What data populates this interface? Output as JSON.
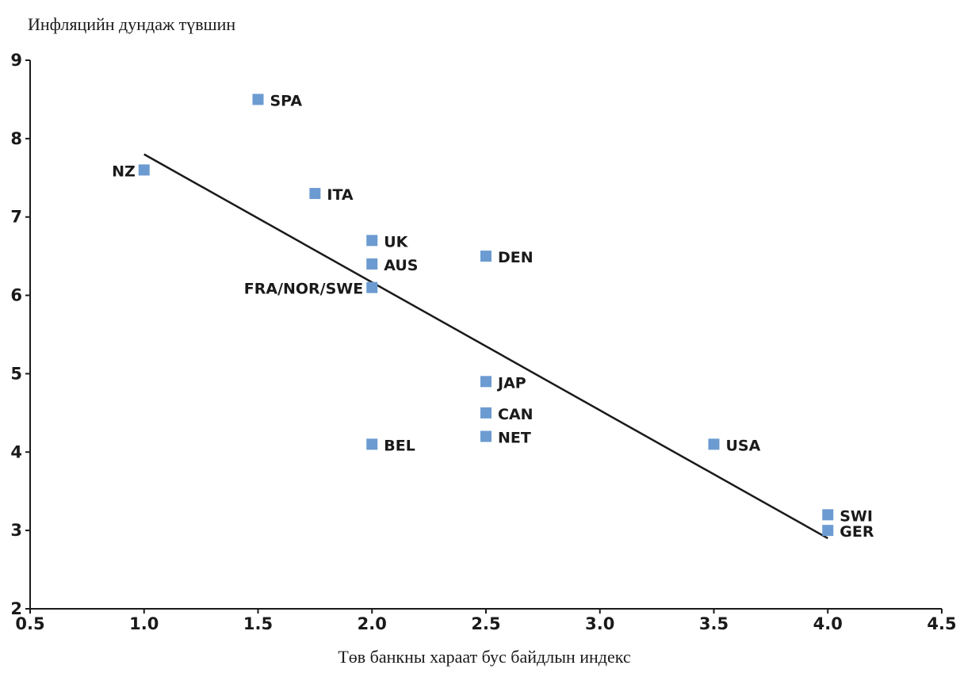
{
  "chart_data": {
    "type": "scatter",
    "title": "",
    "ylabel": "Инфляцийн дундаж түвшин",
    "xlabel": "Төв банкны хараат бус байдлын индекс",
    "xlim": [
      0.5,
      4.5
    ],
    "ylim": [
      2,
      9
    ],
    "x_ticks": [
      0.5,
      1.0,
      1.5,
      2.0,
      2.5,
      3.0,
      3.5,
      4.0,
      4.5
    ],
    "x_tick_labels": [
      "0.5",
      "1.0",
      "1.5",
      "2.0",
      "2.5",
      "3.0",
      "3.5",
      "4.0",
      "4.5"
    ],
    "y_ticks": [
      2,
      3,
      4,
      5,
      6,
      7,
      8,
      9
    ],
    "y_tick_labels": [
      "2",
      "3",
      "4",
      "5",
      "6",
      "7",
      "8",
      "9"
    ],
    "grid": false,
    "legend": "none",
    "marker_color": "#6b9bd1",
    "points": [
      {
        "label": "SPA",
        "x": 1.5,
        "y": 8.5,
        "label_side": "right"
      },
      {
        "label": "NZ",
        "x": 1.0,
        "y": 7.6,
        "label_side": "left"
      },
      {
        "label": "ITA",
        "x": 1.75,
        "y": 7.3,
        "label_side": "right"
      },
      {
        "label": "UK",
        "x": 2.0,
        "y": 6.7,
        "label_side": "right"
      },
      {
        "label": "AUS",
        "x": 2.0,
        "y": 6.4,
        "label_side": "right"
      },
      {
        "label": "FRA/NOR/SWE",
        "x": 2.0,
        "y": 6.1,
        "label_side": "left"
      },
      {
        "label": "DEN",
        "x": 2.5,
        "y": 6.5,
        "label_side": "right"
      },
      {
        "label": "JAP",
        "x": 2.5,
        "y": 4.9,
        "label_side": "right"
      },
      {
        "label": "CAN",
        "x": 2.5,
        "y": 4.5,
        "label_side": "right"
      },
      {
        "label": "NET",
        "x": 2.5,
        "y": 4.2,
        "label_side": "right"
      },
      {
        "label": "BEL",
        "x": 2.0,
        "y": 4.1,
        "label_side": "right"
      },
      {
        "label": "USA",
        "x": 3.5,
        "y": 4.1,
        "label_side": "right"
      },
      {
        "label": "SWI",
        "x": 4.0,
        "y": 3.2,
        "label_side": "right"
      },
      {
        "label": "GER",
        "x": 4.0,
        "y": 3.0,
        "label_side": "right"
      }
    ],
    "trend_line": {
      "x": [
        1.0,
        4.0
      ],
      "y": [
        7.8,
        2.9
      ]
    }
  }
}
